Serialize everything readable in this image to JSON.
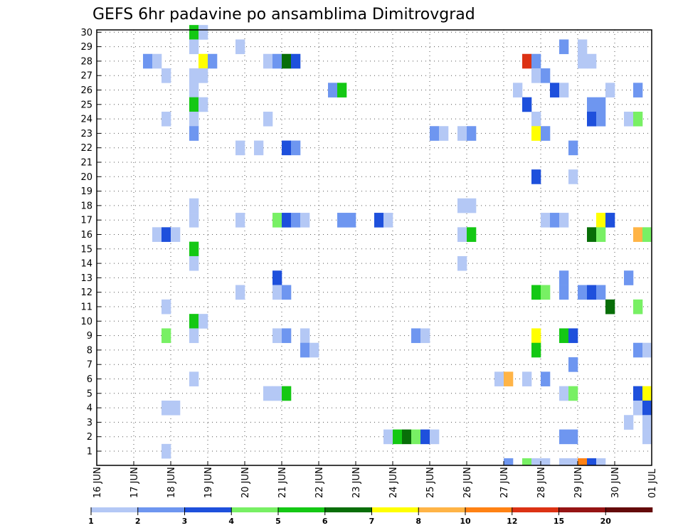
{
  "chart_data": {
    "type": "heatmap",
    "title": "GEFS 6hr padavine po ansamblima Dimitrovgrad",
    "xlabel": "",
    "ylabel": "",
    "y_members": [
      1,
      30
    ],
    "y_ticks": [
      "1",
      "2",
      "3",
      "4",
      "5",
      "6",
      "7",
      "8",
      "9",
      "10",
      "11",
      "12",
      "13",
      "14",
      "15",
      "16",
      "17",
      "18",
      "19",
      "20",
      "21",
      "22",
      "23",
      "24",
      "25",
      "26",
      "27",
      "28",
      "29",
      "30"
    ],
    "x_range_days": [
      "16 JUN",
      "01 JUL"
    ],
    "x_ticks": [
      "16 JUN",
      "17 JUN",
      "18 JUN",
      "19 JUN",
      "20 JUN",
      "21 JUN",
      "22 JUN",
      "23 JUN",
      "24 JUN",
      "25 JUN",
      "26 JUN",
      "27 JUN",
      "28 JUN",
      "29 JUN",
      "30 JUN",
      "01 JUL"
    ],
    "time_step": "6hr",
    "colorbar": {
      "ticks": [
        "1",
        "2",
        "3",
        "4",
        "5",
        "6",
        "7",
        "8",
        "10",
        "12",
        "15",
        "20"
      ],
      "colors": [
        "#b4c8f5",
        "#6e96f0",
        "#1e50dc",
        "#78f064",
        "#14c814",
        "#086e08",
        "#ffff00",
        "#ffb446",
        "#ff8214",
        "#dc3214",
        "#961414",
        "#640a0a"
      ]
    },
    "cells_note": "Each cell = [member, day offset from 16 JUN 00Z, 6-hour slot 0-3, colour bin 1-12]",
    "cells": [
      [
        30,
        2,
        2,
        5
      ],
      [
        30,
        2,
        3,
        1
      ],
      [
        29,
        2,
        2,
        1
      ],
      [
        29,
        3,
        3,
        1
      ],
      [
        29,
        12,
        2,
        2
      ],
      [
        29,
        13,
        0,
        1
      ],
      [
        28,
        1,
        1,
        2
      ],
      [
        28,
        1,
        2,
        1
      ],
      [
        28,
        2,
        3,
        7
      ],
      [
        28,
        3,
        0,
        2
      ],
      [
        28,
        4,
        2,
        1
      ],
      [
        28,
        4,
        3,
        2
      ],
      [
        28,
        5,
        0,
        6
      ],
      [
        28,
        5,
        1,
        3
      ],
      [
        28,
        11,
        2,
        10
      ],
      [
        28,
        11,
        3,
        2
      ],
      [
        28,
        13,
        0,
        1
      ],
      [
        28,
        13,
        1,
        1
      ],
      [
        27,
        1,
        3,
        1
      ],
      [
        27,
        2,
        2,
        1
      ],
      [
        27,
        2,
        3,
        1
      ],
      [
        27,
        11,
        3,
        1
      ],
      [
        27,
        12,
        0,
        2
      ],
      [
        26,
        2,
        2,
        1
      ],
      [
        26,
        6,
        1,
        2
      ],
      [
        26,
        6,
        2,
        5
      ],
      [
        26,
        11,
        1,
        1
      ],
      [
        26,
        12,
        1,
        3
      ],
      [
        26,
        12,
        2,
        1
      ],
      [
        26,
        13,
        3,
        1
      ],
      [
        26,
        14,
        2,
        2
      ],
      [
        25,
        2,
        2,
        5
      ],
      [
        25,
        2,
        3,
        1
      ],
      [
        25,
        11,
        2,
        3
      ],
      [
        25,
        13,
        1,
        2
      ],
      [
        25,
        13,
        2,
        2
      ],
      [
        24,
        1,
        3,
        1
      ],
      [
        24,
        2,
        2,
        1
      ],
      [
        24,
        4,
        2,
        1
      ],
      [
        24,
        11,
        3,
        1
      ],
      [
        24,
        13,
        1,
        3
      ],
      [
        24,
        13,
        2,
        2
      ],
      [
        24,
        14,
        1,
        1
      ],
      [
        24,
        14,
        2,
        4
      ],
      [
        23,
        2,
        2,
        2
      ],
      [
        23,
        9,
        0,
        2
      ],
      [
        23,
        9,
        1,
        1
      ],
      [
        23,
        9,
        3,
        1
      ],
      [
        23,
        10,
        0,
        2
      ],
      [
        23,
        11,
        3,
        7
      ],
      [
        23,
        12,
        0,
        2
      ],
      [
        22,
        3,
        3,
        1
      ],
      [
        22,
        4,
        1,
        1
      ],
      [
        22,
        5,
        0,
        3
      ],
      [
        22,
        5,
        1,
        2
      ],
      [
        22,
        12,
        3,
        2
      ],
      [
        20,
        11,
        3,
        3
      ],
      [
        20,
        12,
        3,
        1
      ],
      [
        18,
        2,
        2,
        1
      ],
      [
        18,
        9,
        3,
        1
      ],
      [
        18,
        10,
        0,
        1
      ],
      [
        17,
        2,
        2,
        1
      ],
      [
        17,
        3,
        3,
        1
      ],
      [
        17,
        4,
        3,
        4
      ],
      [
        17,
        5,
        0,
        3
      ],
      [
        17,
        5,
        1,
        2
      ],
      [
        17,
        5,
        2,
        1
      ],
      [
        17,
        6,
        2,
        2
      ],
      [
        17,
        6,
        3,
        2
      ],
      [
        17,
        7,
        2,
        3
      ],
      [
        17,
        7,
        3,
        1
      ],
      [
        17,
        12,
        0,
        1
      ],
      [
        17,
        12,
        1,
        2
      ],
      [
        17,
        12,
        2,
        1
      ],
      [
        17,
        13,
        2,
        7
      ],
      [
        17,
        13,
        3,
        3
      ],
      [
        16,
        1,
        2,
        1
      ],
      [
        16,
        1,
        3,
        3
      ],
      [
        16,
        2,
        0,
        1
      ],
      [
        16,
        9,
        3,
        1
      ],
      [
        16,
        10,
        0,
        5
      ],
      [
        16,
        13,
        1,
        6
      ],
      [
        16,
        13,
        2,
        4
      ],
      [
        16,
        14,
        2,
        8
      ],
      [
        16,
        14,
        3,
        4
      ],
      [
        15,
        2,
        2,
        5
      ],
      [
        14,
        2,
        2,
        1
      ],
      [
        14,
        9,
        3,
        1
      ],
      [
        13,
        4,
        3,
        3
      ],
      [
        13,
        12,
        2,
        2
      ],
      [
        13,
        14,
        1,
        2
      ],
      [
        12,
        3,
        3,
        1
      ],
      [
        12,
        4,
        3,
        1
      ],
      [
        12,
        5,
        0,
        2
      ],
      [
        12,
        11,
        3,
        5
      ],
      [
        12,
        12,
        0,
        4
      ],
      [
        12,
        12,
        2,
        2
      ],
      [
        12,
        13,
        0,
        2
      ],
      [
        12,
        13,
        1,
        3
      ],
      [
        12,
        13,
        2,
        2
      ],
      [
        11,
        1,
        3,
        1
      ],
      [
        11,
        13,
        3,
        6
      ],
      [
        11,
        14,
        2,
        4
      ],
      [
        10,
        2,
        2,
        5
      ],
      [
        10,
        2,
        3,
        1
      ],
      [
        9,
        1,
        3,
        4
      ],
      [
        9,
        2,
        2,
        1
      ],
      [
        9,
        4,
        3,
        1
      ],
      [
        9,
        5,
        0,
        2
      ],
      [
        9,
        5,
        2,
        1
      ],
      [
        9,
        8,
        2,
        2
      ],
      [
        9,
        8,
        3,
        1
      ],
      [
        9,
        11,
        3,
        7
      ],
      [
        9,
        12,
        2,
        5
      ],
      [
        9,
        12,
        3,
        3
      ],
      [
        8,
        5,
        2,
        2
      ],
      [
        8,
        5,
        3,
        1
      ],
      [
        8,
        11,
        3,
        5
      ],
      [
        8,
        14,
        2,
        2
      ],
      [
        8,
        14,
        3,
        1
      ],
      [
        7,
        12,
        3,
        2
      ],
      [
        6,
        2,
        2,
        1
      ],
      [
        6,
        10,
        3,
        1
      ],
      [
        6,
        11,
        0,
        8
      ],
      [
        6,
        11,
        2,
        1
      ],
      [
        6,
        12,
        0,
        2
      ],
      [
        5,
        4,
        2,
        1
      ],
      [
        5,
        4,
        3,
        1
      ],
      [
        5,
        5,
        0,
        5
      ],
      [
        5,
        12,
        2,
        1
      ],
      [
        5,
        12,
        3,
        4
      ],
      [
        5,
        14,
        2,
        3
      ],
      [
        5,
        14,
        3,
        7
      ],
      [
        4,
        1,
        3,
        1
      ],
      [
        4,
        2,
        0,
        1
      ],
      [
        4,
        14,
        2,
        1
      ],
      [
        4,
        14,
        3,
        3
      ],
      [
        3,
        14,
        1,
        1
      ],
      [
        3,
        14,
        3,
        1
      ],
      [
        2,
        7,
        3,
        1
      ],
      [
        2,
        8,
        0,
        5
      ],
      [
        2,
        8,
        1,
        6
      ],
      [
        2,
        8,
        2,
        4
      ],
      [
        2,
        8,
        3,
        3
      ],
      [
        2,
        9,
        0,
        1
      ],
      [
        2,
        12,
        2,
        2
      ],
      [
        2,
        12,
        3,
        2
      ],
      [
        2,
        14,
        3,
        1
      ],
      [
        1,
        1,
        3,
        1
      ]
    ],
    "bottom_row": [
      [
        11,
        0,
        2
      ],
      [
        11,
        2,
        4
      ],
      [
        11,
        3,
        1
      ],
      [
        12,
        0,
        1
      ],
      [
        12,
        2,
        1
      ],
      [
        12,
        3,
        1
      ],
      [
        13,
        0,
        9
      ],
      [
        13,
        1,
        3
      ],
      [
        13,
        2,
        1
      ]
    ]
  }
}
